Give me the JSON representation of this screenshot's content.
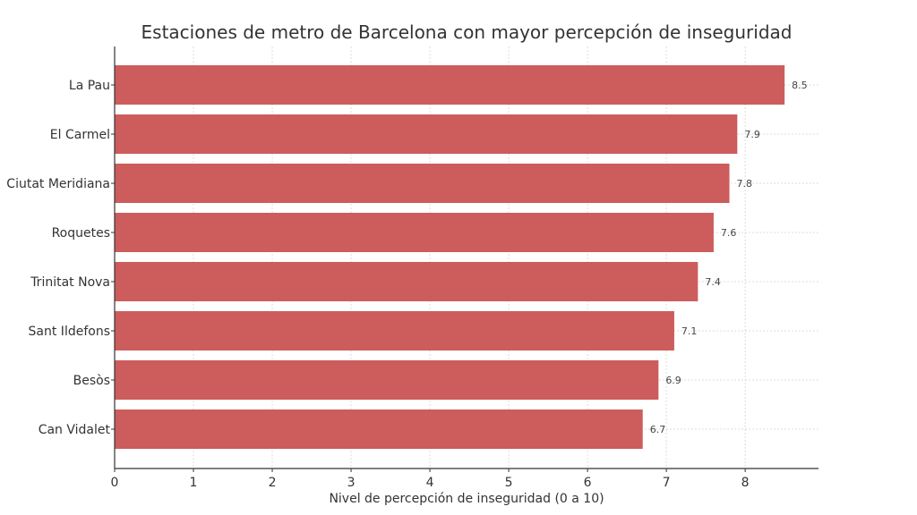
{
  "chart_data": {
    "type": "bar",
    "orientation": "horizontal",
    "title": "Estaciones de metro de Barcelona con mayor percepción de inseguridad",
    "xlabel": "Nivel de percepción de inseguridad (0 a 10)",
    "ylabel": "",
    "categories": [
      "La Pau",
      "El Carmel",
      "Ciutat Meridiana",
      "Roquetes",
      "Trinitat Nova",
      "Sant Ildefons",
      "Besòs",
      "Can Vidalet"
    ],
    "values": [
      8.5,
      7.9,
      7.8,
      7.6,
      7.4,
      7.1,
      6.9,
      6.7
    ],
    "data_labels": [
      "8.5",
      "7.9",
      "7.8",
      "7.6",
      "7.4",
      "7.1",
      "6.9",
      "6.7"
    ],
    "xticks": [
      "0",
      "1",
      "2",
      "3",
      "4",
      "5",
      "6",
      "7",
      "8"
    ],
    "xlim": [
      0,
      8.93
    ],
    "grid": true,
    "bar_color": "#cd5c5c"
  }
}
